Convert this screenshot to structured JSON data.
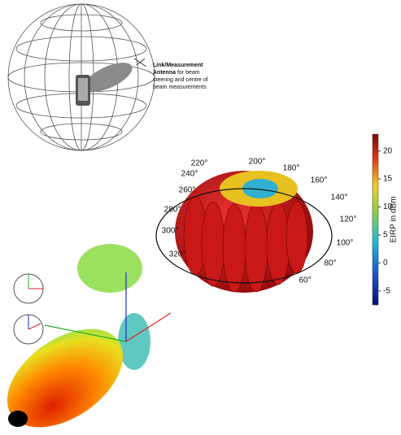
{
  "annotation": {
    "bold_lines": [
      "Link/Measurement",
      "Antenna"
    ],
    "lines": [
      "for beam",
      "steering and centre of",
      "beam measurements"
    ]
  },
  "pattern": {
    "azimuth_labels": [
      "220°",
      "200°",
      "180°",
      "160°",
      "140°",
      "120°",
      "100°",
      "80°",
      "60°",
      "240°",
      "260°",
      "280°",
      "300°",
      "320°"
    ]
  },
  "colorbar": {
    "label": "EIRP in dBm",
    "ticks": [
      20,
      15,
      10,
      5,
      0,
      -5
    ]
  }
}
